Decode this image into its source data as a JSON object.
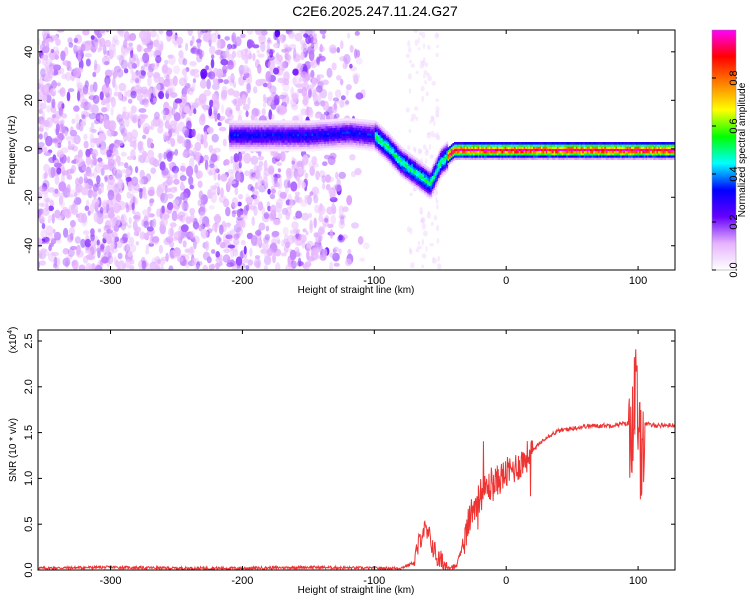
{
  "figure": {
    "title": "C2E6.2025.247.11.24.G27"
  },
  "chart_data": [
    {
      "type": "heatmap",
      "title": "C2E6.2025.247.11.24.G27",
      "xlabel": "Height of straight line (km)",
      "ylabel": "Frequency (Hz)",
      "xlim": [
        -355,
        128
      ],
      "ylim": [
        -50,
        49
      ],
      "x_ticks": [
        "-300",
        "-200",
        "-100",
        "0",
        "100"
      ],
      "y_ticks": [
        "40",
        "20",
        "0",
        "-20",
        "-40"
      ],
      "colorbar": {
        "label": "Normalized spectral amplitude",
        "range": [
          0,
          1
        ],
        "ticks": [
          "0.0",
          "0.2",
          "0.4",
          "0.6",
          "0.8"
        ],
        "colormap": [
          "#ffffff",
          "#e6b3ff",
          "#6600ff",
          "#0000ff",
          "#00ffff",
          "#00ff00",
          "#ffff00",
          "#ff8000",
          "#ff0000",
          "#ff00ff"
        ]
      },
      "ridge": [
        {
          "x": -210,
          "y": 6
        },
        {
          "x": -150,
          "y": 6
        },
        {
          "x": -120,
          "y": 7
        },
        {
          "x": -100,
          "y": 6
        },
        {
          "x": -90,
          "y": 1
        },
        {
          "x": -80,
          "y": -5
        },
        {
          "x": -70,
          "y": -9
        },
        {
          "x": -58,
          "y": -14
        },
        {
          "x": -50,
          "y": -5
        },
        {
          "x": -40,
          "y": 0
        },
        {
          "x": 0,
          "y": 0
        },
        {
          "x": 50,
          "y": 0
        },
        {
          "x": 100,
          "y": 0
        },
        {
          "x": 128,
          "y": 0
        }
      ]
    },
    {
      "type": "line",
      "xlabel": "Height of straight line (km)",
      "ylabel": "SNR (10 * v/v)",
      "y_multiplier": "(x10",
      "y_multiplier_exp": "4",
      "xlim": [
        -355,
        128
      ],
      "ylim": [
        0,
        2.62
      ],
      "x_ticks": [
        "-300",
        "-200",
        "-100",
        "0",
        "100"
      ],
      "y_ticks": [
        "0.0",
        "0.5",
        "1.0",
        "1.5",
        "2.0",
        "2.5"
      ],
      "color": "#ee3333",
      "series": [
        {
          "x": [
            -355,
            -300,
            -250,
            -200,
            -150,
            -100,
            -80,
            -70,
            -63,
            -58,
            -52,
            -45,
            -38,
            -32,
            -28,
            -25,
            -20,
            -15,
            -10,
            -5,
            0,
            10,
            20,
            30,
            40,
            60,
            80,
            92,
            95,
            98,
            100,
            102,
            105,
            110,
            128
          ],
          "y": [
            0.02,
            0.03,
            0.02,
            0.02,
            0.03,
            0.02,
            0.02,
            0.08,
            0.45,
            0.35,
            0.12,
            0.04,
            0.03,
            0.3,
            0.55,
            0.7,
            0.8,
            0.9,
            0.92,
            1.0,
            1.05,
            1.15,
            1.3,
            1.45,
            1.52,
            1.57,
            1.58,
            1.6,
            1.5,
            2.0,
            1.6,
            1.2,
            1.6,
            1.58,
            1.58
          ]
        }
      ]
    }
  ]
}
